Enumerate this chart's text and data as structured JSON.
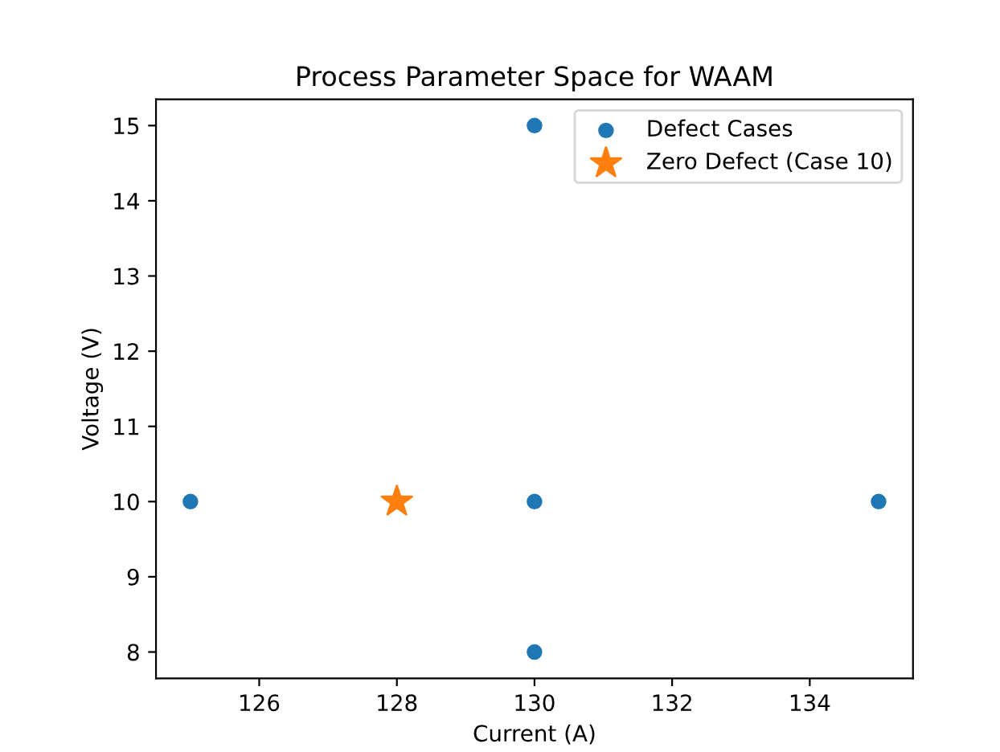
{
  "chart_data": {
    "type": "scatter",
    "title": "Process Parameter Space for WAAM",
    "xlabel": "Current (A)",
    "ylabel": "Voltage (V)",
    "series": [
      {
        "name": "Defect Cases",
        "color": "#1f77b4",
        "marker": "circle",
        "x": [
          125,
          130,
          130,
          130,
          135
        ],
        "values": [
          10,
          15,
          10,
          8,
          10
        ]
      },
      {
        "name": "Zero Defect (Case 10)",
        "color": "#ff7f0e",
        "marker": "star",
        "x": [
          128
        ],
        "values": [
          10
        ]
      }
    ],
    "xlim": [
      124.5,
      135.5
    ],
    "ylim": [
      7.65,
      15.35
    ],
    "xticks": [
      126,
      128,
      130,
      132,
      134
    ],
    "yticks": [
      8,
      9,
      10,
      11,
      12,
      13,
      14,
      15
    ],
    "grid": false,
    "legend": "top right"
  }
}
